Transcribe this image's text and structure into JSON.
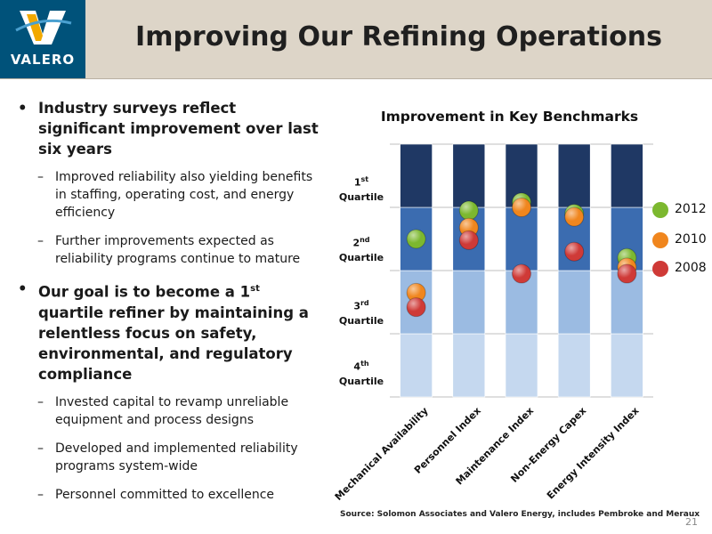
{
  "header": {
    "title": "Improving Our Refining Operations",
    "logo_text": "VALERO"
  },
  "bullets": [
    {
      "text": "Industry surveys reflect significant improvement over last six years",
      "subs": [
        "Improved reliability also yielding benefits in staffing, operating cost, and energy efficiency",
        "Further improvements expected as reliability programs continue to mature"
      ]
    },
    {
      "text_pre": "Our goal is to become a 1",
      "text_sup": "st",
      "text_post": " quartile refiner by maintaining a relentless focus on safety, environmental, and regulatory compliance",
      "subs": [
        "Invested capital to revamp unreliable equipment and process designs",
        "Developed and implemented reliability programs system-wide",
        "Personnel committed to excellence"
      ]
    }
  ],
  "chart_data": {
    "type": "scatter",
    "title": "Improvement in Key Benchmarks",
    "categories": [
      "Mechanical Availability",
      "Personnel Index",
      "Maintenance Index",
      "Non-Energy Capex",
      "Energy Intensity Index"
    ],
    "quartile_labels": [
      {
        "num": "1",
        "sup": "st",
        "word": "Quartile"
      },
      {
        "num": "2",
        "sup": "nd",
        "word": "Quartile"
      },
      {
        "num": "3",
        "sup": "rd",
        "word": "Quartile"
      },
      {
        "num": "4",
        "sup": "th",
        "word": "Quartile"
      }
    ],
    "ylim": [
      0,
      4
    ],
    "series": [
      {
        "name": "2012",
        "color": "#7cb82f",
        "values": [
          2.5,
          2.95,
          3.08,
          2.9,
          2.2
        ]
      },
      {
        "name": "2010",
        "color": "#f0861e",
        "values": [
          1.65,
          2.68,
          3.0,
          2.85,
          2.05
        ]
      },
      {
        "name": "2008",
        "color": "#cf3a37",
        "values": [
          1.42,
          2.48,
          1.95,
          2.3,
          1.95
        ]
      }
    ],
    "quartile_colors": [
      "#c5d8ef",
      "#9bbbe2",
      "#3b6cb0",
      "#1f3864"
    ]
  },
  "source": "Source: Solomon Associates and Valero Energy, includes Pembroke and Meraux",
  "page_number": "21"
}
